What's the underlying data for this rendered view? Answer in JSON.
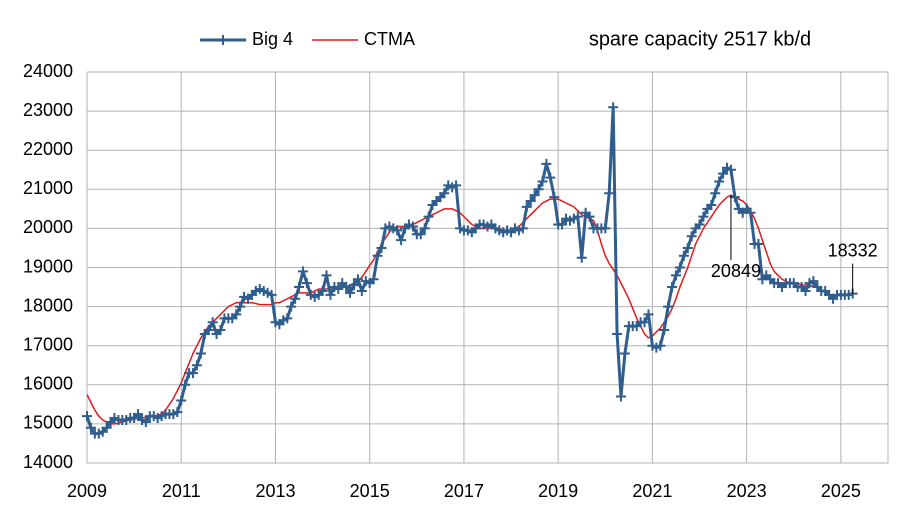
{
  "chart_data": {
    "type": "line",
    "title": "spare capacity 2517 kb/d",
    "xlim": [
      2009,
      2026
    ],
    "xticks": [
      2009,
      2011,
      2013,
      2015,
      2017,
      2019,
      2021,
      2023,
      2025
    ],
    "ylim": [
      14000,
      24000
    ],
    "yticks": [
      14000,
      15000,
      16000,
      17000,
      18000,
      19000,
      20000,
      21000,
      22000,
      23000,
      24000
    ],
    "grid": true,
    "legend": "top",
    "x": [
      2009,
      2009.083,
      2009.167,
      2009.25,
      2009.333,
      2009.417,
      2009.5,
      2009.583,
      2009.667,
      2009.75,
      2009.833,
      2009.917,
      2010,
      2010.083,
      2010.167,
      2010.25,
      2010.333,
      2010.417,
      2010.5,
      2010.583,
      2010.667,
      2010.75,
      2010.833,
      2010.917,
      2011,
      2011.083,
      2011.167,
      2011.25,
      2011.333,
      2011.417,
      2011.5,
      2011.583,
      2011.667,
      2011.75,
      2011.833,
      2011.917,
      2012,
      2012.083,
      2012.167,
      2012.25,
      2012.333,
      2012.417,
      2012.5,
      2012.583,
      2012.667,
      2012.75,
      2012.833,
      2012.917,
      2013,
      2013.083,
      2013.167,
      2013.25,
      2013.333,
      2013.417,
      2013.5,
      2013.583,
      2013.667,
      2013.75,
      2013.833,
      2013.917,
      2014,
      2014.083,
      2014.167,
      2014.25,
      2014.333,
      2014.417,
      2014.5,
      2014.583,
      2014.667,
      2014.75,
      2014.833,
      2014.917,
      2015,
      2015.083,
      2015.167,
      2015.25,
      2015.333,
      2015.417,
      2015.5,
      2015.583,
      2015.667,
      2015.75,
      2015.833,
      2015.917,
      2016,
      2016.083,
      2016.167,
      2016.25,
      2016.333,
      2016.417,
      2016.5,
      2016.583,
      2016.667,
      2016.75,
      2016.833,
      2016.917,
      2017,
      2017.083,
      2017.167,
      2017.25,
      2017.333,
      2017.417,
      2017.5,
      2017.583,
      2017.667,
      2017.75,
      2017.833,
      2017.917,
      2018,
      2018.083,
      2018.167,
      2018.25,
      2018.333,
      2018.417,
      2018.5,
      2018.583,
      2018.667,
      2018.75,
      2018.833,
      2018.917,
      2019,
      2019.083,
      2019.167,
      2019.25,
      2019.333,
      2019.417,
      2019.5,
      2019.583,
      2019.667,
      2019.75,
      2019.833,
      2019.917,
      2020,
      2020.083,
      2020.167,
      2020.25,
      2020.333,
      2020.417,
      2020.5,
      2020.583,
      2020.667,
      2020.75,
      2020.833,
      2020.917,
      2021,
      2021.083,
      2021.167,
      2021.25,
      2021.333,
      2021.417,
      2021.5,
      2021.583,
      2021.667,
      2021.75,
      2021.833,
      2021.917,
      2022,
      2022.083,
      2022.167,
      2022.25,
      2022.333,
      2022.417,
      2022.5,
      2022.583,
      2022.667,
      2022.75,
      2022.833,
      2022.917,
      2023,
      2023.083,
      2023.167,
      2023.25,
      2023.333,
      2023.417,
      2023.5,
      2023.583,
      2023.667,
      2023.75,
      2023.833,
      2023.917,
      2024,
      2024.083,
      2024.167,
      2024.25,
      2024.333,
      2024.417,
      2024.5,
      2024.583,
      2024.667,
      2024.75,
      2024.833,
      2024.917,
      2025,
      2025.083,
      2025.167,
      2025.25
    ],
    "series": [
      {
        "name": "Big 4",
        "color": "#2f5e8e",
        "marker": "plus",
        "values": [
          15200,
          14900,
          14750,
          14750,
          14800,
          14900,
          15050,
          15150,
          15100,
          15100,
          15100,
          15150,
          15150,
          15250,
          15100,
          15050,
          15200,
          15200,
          15150,
          15200,
          15250,
          15250,
          15250,
          15300,
          15600,
          16000,
          16300,
          16300,
          16500,
          16800,
          17300,
          17400,
          17600,
          17300,
          17400,
          17700,
          17700,
          17700,
          17800,
          18000,
          18250,
          18200,
          18300,
          18400,
          18450,
          18400,
          18350,
          18300,
          17600,
          17550,
          17650,
          17700,
          18000,
          18200,
          18500,
          18900,
          18600,
          18300,
          18250,
          18300,
          18400,
          18800,
          18300,
          18500,
          18450,
          18600,
          18500,
          18350,
          18550,
          18700,
          18400,
          18650,
          18600,
          18700,
          19300,
          19500,
          20000,
          20050,
          20000,
          19950,
          19700,
          20000,
          20100,
          20050,
          19850,
          19850,
          20000,
          20300,
          20600,
          20700,
          20800,
          20900,
          21100,
          21050,
          21100,
          20000,
          19950,
          19950,
          19900,
          20000,
          20100,
          20100,
          20050,
          20100,
          20000,
          19950,
          19900,
          19950,
          19900,
          20000,
          19950,
          20000,
          20550,
          20700,
          20850,
          21000,
          21200,
          21650,
          21300,
          20800,
          20100,
          20100,
          20250,
          20200,
          20250,
          20300,
          19250,
          20400,
          20300,
          20000,
          20000,
          20000,
          20000,
          20900,
          23100,
          17300,
          15700,
          16800,
          17500,
          17500,
          17500,
          17600,
          17600,
          17800,
          17000,
          16950,
          17000,
          17400,
          18000,
          18500,
          18800,
          19000,
          19300,
          19500,
          19800,
          20000,
          20100,
          20300,
          20500,
          20600,
          20900,
          21200,
          21400,
          21550,
          21500,
          20800,
          20500,
          20400,
          20500,
          20400,
          19600,
          19600,
          18700,
          18800,
          18700,
          18600,
          18600,
          18500,
          18600,
          18600,
          18600,
          18500,
          18500,
          18400,
          18600,
          18650,
          18500,
          18400,
          18400,
          18300,
          18200,
          18300,
          18300,
          18300,
          18300,
          18332
        ]
      },
      {
        "name": "CTMA",
        "color": "#e31a1c",
        "values": [
          15750,
          15550,
          15350,
          15200,
          15100,
          15050,
          15000,
          15000,
          15020,
          15050,
          15080,
          15100,
          15120,
          15150,
          15150,
          15170,
          15180,
          15200,
          15220,
          15250,
          15350,
          15500,
          15650,
          15850,
          16050,
          16300,
          16550,
          16800,
          17000,
          17200,
          17350,
          17500,
          17600,
          17700,
          17800,
          17900,
          18000,
          18050,
          18100,
          18100,
          18100,
          18100,
          18100,
          18080,
          18050,
          18050,
          18050,
          18050,
          18100,
          18100,
          18150,
          18200,
          18250,
          18300,
          18350,
          18350,
          18350,
          18350,
          18400,
          18450,
          18450,
          18450,
          18450,
          18450,
          18500,
          18500,
          18500,
          18550,
          18600,
          18650,
          18750,
          18900,
          19050,
          19200,
          19400,
          19600,
          19750,
          19900,
          20000,
          20050,
          20050,
          20050,
          20050,
          20100,
          20150,
          20200,
          20250,
          20300,
          20350,
          20400,
          20450,
          20500,
          20500,
          20500,
          20450,
          20400,
          20300,
          20200,
          20100,
          20050,
          20000,
          20000,
          20000,
          20000,
          20000,
          20000,
          19950,
          19950,
          19950,
          20000,
          20050,
          20150,
          20250,
          20350,
          20450,
          20550,
          20650,
          20700,
          20750,
          20750,
          20750,
          20700,
          20650,
          20600,
          20550,
          20450,
          20350,
          20300,
          20250,
          20200,
          19950,
          19600,
          19300,
          19100,
          18950,
          18800,
          18600,
          18400,
          18200,
          17950,
          17700,
          17500,
          17300,
          17200,
          17250,
          17350,
          17450,
          17600,
          17750,
          17950,
          18200,
          18500,
          18750,
          19000,
          19300,
          19600,
          19800,
          20000,
          20150,
          20300,
          20450,
          20600,
          20700,
          20800,
          20849,
          20800,
          20750,
          20700,
          20600,
          20450,
          20250,
          20000,
          19700,
          19400,
          19100,
          18900,
          18800,
          18700,
          18650,
          18600,
          18600,
          18600,
          18550,
          18550,
          18550,
          18500,
          18500,
          null,
          null,
          null,
          null,
          null,
          null,
          null,
          null,
          null
        ]
      }
    ],
    "annotations": [
      {
        "label": "20849",
        "x": 2022.667,
        "y": 20849
      },
      {
        "label": "18332",
        "x": 2025.25,
        "y": 18332
      }
    ]
  }
}
